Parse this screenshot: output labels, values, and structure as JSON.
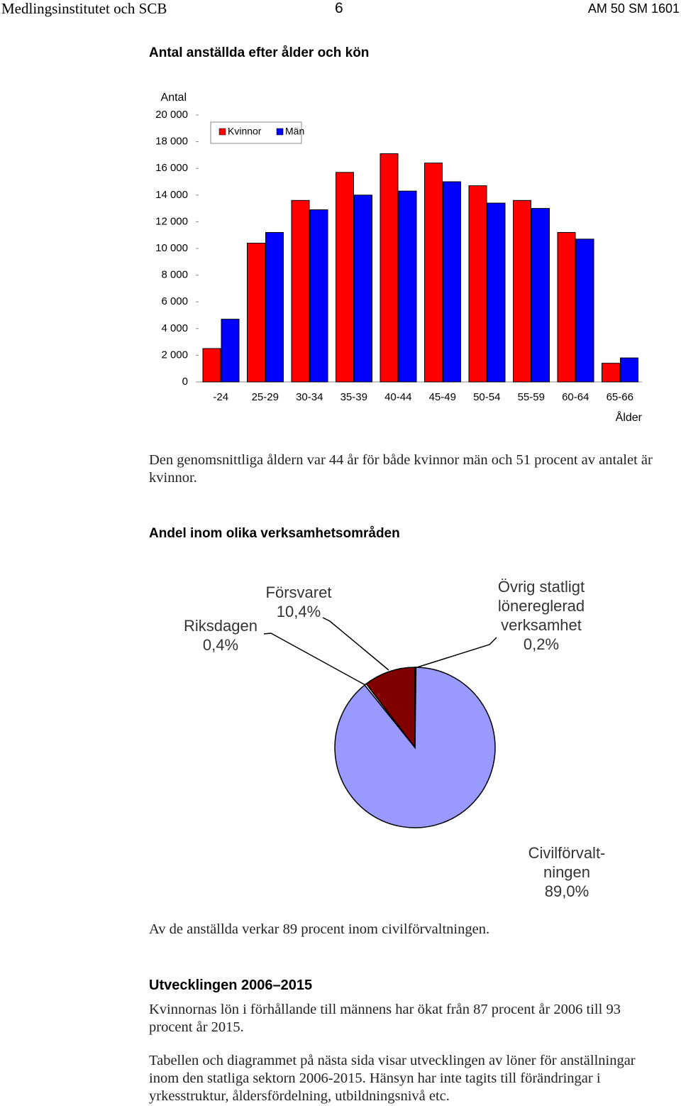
{
  "header": {
    "left": "Medlingsinstitutet och SCB",
    "page": "6",
    "right": "AM 50 SM 1601"
  },
  "chart_data": [
    {
      "type": "bar",
      "title": "Antal anställda efter ålder och kön",
      "ylabel": "Antal",
      "xlabel": "Ålder",
      "categories": [
        "-24",
        "25-29",
        "30-34",
        "35-39",
        "40-44",
        "45-49",
        "50-54",
        "55-59",
        "60-64",
        "65-66"
      ],
      "series": [
        {
          "name": "Kvinnor",
          "color": "#ff0000",
          "values": [
            2500,
            10400,
            13600,
            15700,
            17100,
            16400,
            14700,
            13600,
            11200,
            1400
          ]
        },
        {
          "name": "Män",
          "color": "#0000ff",
          "values": [
            4700,
            11200,
            12900,
            14000,
            14300,
            15000,
            13400,
            13000,
            10700,
            1800
          ]
        }
      ],
      "ylim": [
        0,
        20000
      ],
      "yticks": [
        0,
        {
          "value": 2000,
          "label": "2 000"
        },
        {
          "value": 4000,
          "label": "4 000"
        },
        {
          "value": 6000,
          "label": "6 000"
        },
        {
          "value": 8000,
          "label": "8 000"
        },
        {
          "value": 10000,
          "label": "10 000"
        },
        {
          "value": 12000,
          "label": "12 000"
        },
        {
          "value": 14000,
          "label": "14 000"
        },
        {
          "value": 16000,
          "label": "16 000"
        },
        {
          "value": 18000,
          "label": "18 000"
        },
        {
          "value": 20000,
          "label": "20 000"
        }
      ],
      "legend": "top-left"
    },
    {
      "type": "pie",
      "title": "Andel inom olika verksamhetsområden",
      "categories": [
        [
          "Övrig statligt",
          "lönereglerad",
          "verksamhet"
        ],
        [
          "Civilförvalt-",
          "ningen"
        ],
        [
          "Riksdagen"
        ],
        [
          "Försvaret"
        ]
      ],
      "values": [
        0.2,
        89.0,
        0.4,
        10.4
      ],
      "value_labels": [
        "0,2%",
        "89,0%",
        "0,4%",
        "10,4%"
      ],
      "colors": [
        "#ffffcc",
        "#9999ff",
        "#ffffff",
        "#800000"
      ]
    }
  ],
  "texts": {
    "p1": "Den genomsnittliga åldern var 44 år för både kvinnor män och 51 procent av antalet är kvinnor.",
    "p2": "Av de anställda verkar 89 procent inom civilförvaltningen.",
    "heading": "Utvecklingen 2006–2015",
    "p3": "Kvinnornas lön i förhållande till männens har ökat från 87 procent år 2006 till 93 procent år 2015.",
    "p4": "Tabellen och diagrammet på nästa sida visar utvecklingen av löner för anställningar inom den statliga sektorn 2006-2015. Hänsyn har inte tagits till förändringar i yrkesstruktur, åldersfördelning, utbildningsnivå etc."
  }
}
